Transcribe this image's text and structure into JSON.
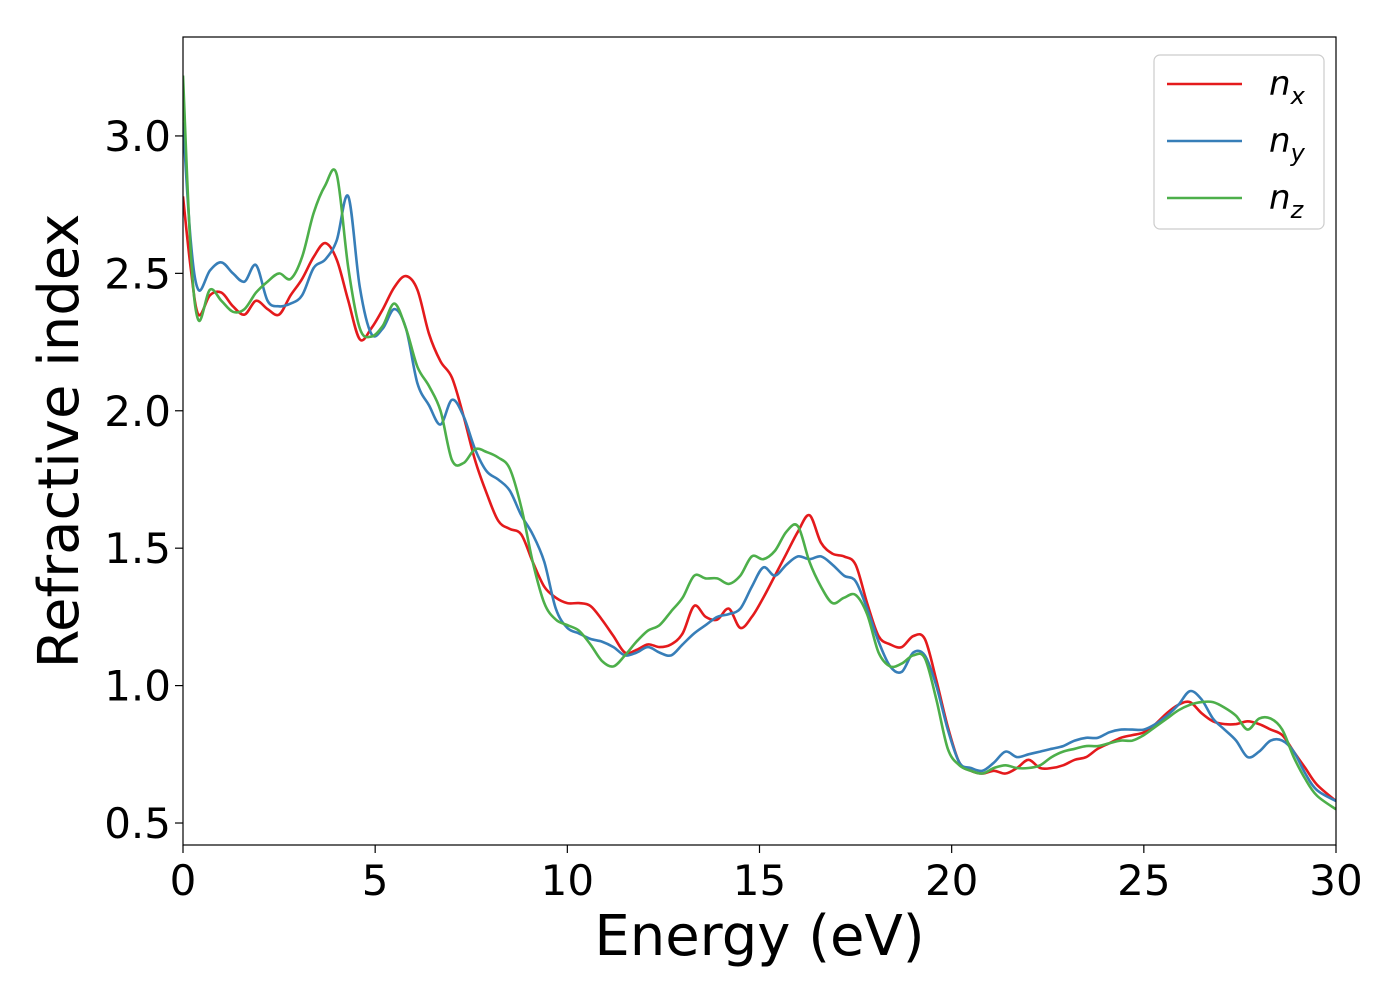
{
  "chart_data": {
    "type": "line",
    "xlabel": "Energy (eV)",
    "ylabel": "Refractive index",
    "xlim": [
      0,
      30
    ],
    "ylim": [
      0.42,
      3.36
    ],
    "xticks": [
      0,
      5,
      10,
      15,
      20,
      25,
      30
    ],
    "xtick_labels": [
      "0",
      "5",
      "10",
      "15",
      "20",
      "25",
      "30"
    ],
    "yticks": [
      0.5,
      1.0,
      1.5,
      2.0,
      2.5,
      3.0
    ],
    "ytick_labels": [
      "0.5",
      "1.0",
      "1.5",
      "2.0",
      "2.5",
      "3.0"
    ],
    "grid": false,
    "legend_position": "top-right",
    "x": [
      0,
      0.2,
      0.4,
      0.7,
      1.0,
      1.3,
      1.6,
      1.9,
      2.2,
      2.5,
      2.8,
      3.1,
      3.4,
      3.7,
      4.0,
      4.3,
      4.6,
      4.9,
      5.2,
      5.5,
      5.8,
      6.1,
      6.4,
      6.7,
      7.0,
      7.3,
      7.6,
      7.9,
      8.2,
      8.5,
      8.8,
      9.1,
      9.4,
      9.7,
      10.0,
      10.3,
      10.6,
      10.9,
      11.2,
      11.5,
      11.8,
      12.1,
      12.4,
      12.7,
      13.0,
      13.3,
      13.6,
      13.9,
      14.2,
      14.5,
      14.8,
      15.1,
      15.4,
      15.7,
      16.0,
      16.3,
      16.6,
      16.9,
      17.2,
      17.5,
      17.8,
      18.1,
      18.4,
      18.7,
      19.0,
      19.3,
      19.6,
      19.9,
      20.2,
      20.5,
      20.8,
      21.1,
      21.4,
      21.7,
      22.0,
      22.3,
      22.6,
      22.9,
      23.2,
      23.5,
      23.8,
      24.1,
      24.4,
      24.7,
      25.0,
      25.3,
      25.6,
      25.9,
      26.2,
      26.5,
      26.8,
      27.1,
      27.4,
      27.7,
      28.0,
      28.3,
      28.6,
      28.9,
      29.2,
      29.5,
      30.0
    ],
    "series": [
      {
        "name": "n",
        "subscript": "x",
        "color": "#e41a1c",
        "values": [
          2.78,
          2.52,
          2.35,
          2.42,
          2.43,
          2.38,
          2.35,
          2.4,
          2.37,
          2.35,
          2.42,
          2.48,
          2.56,
          2.61,
          2.55,
          2.4,
          2.26,
          2.3,
          2.37,
          2.45,
          2.49,
          2.44,
          2.28,
          2.18,
          2.12,
          1.98,
          1.82,
          1.7,
          1.6,
          1.57,
          1.55,
          1.45,
          1.36,
          1.32,
          1.3,
          1.3,
          1.29,
          1.24,
          1.18,
          1.12,
          1.13,
          1.15,
          1.14,
          1.15,
          1.19,
          1.29,
          1.25,
          1.24,
          1.28,
          1.21,
          1.25,
          1.32,
          1.4,
          1.48,
          1.56,
          1.62,
          1.52,
          1.48,
          1.47,
          1.44,
          1.3,
          1.18,
          1.15,
          1.14,
          1.18,
          1.17,
          1.02,
          0.85,
          0.72,
          0.69,
          0.68,
          0.69,
          0.68,
          0.7,
          0.73,
          0.7,
          0.7,
          0.71,
          0.73,
          0.74,
          0.77,
          0.79,
          0.81,
          0.82,
          0.83,
          0.86,
          0.9,
          0.93,
          0.94,
          0.9,
          0.87,
          0.86,
          0.86,
          0.87,
          0.86,
          0.84,
          0.82,
          0.76,
          0.7,
          0.64,
          0.58
        ]
      },
      {
        "name": "n",
        "subscript": "y",
        "color": "#377eb8",
        "values": [
          3.05,
          2.62,
          2.44,
          2.51,
          2.54,
          2.5,
          2.47,
          2.53,
          2.4,
          2.38,
          2.39,
          2.42,
          2.52,
          2.55,
          2.62,
          2.78,
          2.45,
          2.28,
          2.3,
          2.37,
          2.3,
          2.1,
          2.02,
          1.95,
          2.04,
          1.98,
          1.86,
          1.78,
          1.75,
          1.71,
          1.62,
          1.55,
          1.45,
          1.28,
          1.21,
          1.19,
          1.17,
          1.16,
          1.14,
          1.11,
          1.12,
          1.14,
          1.12,
          1.11,
          1.15,
          1.19,
          1.22,
          1.25,
          1.26,
          1.28,
          1.36,
          1.43,
          1.4,
          1.44,
          1.47,
          1.46,
          1.47,
          1.44,
          1.4,
          1.38,
          1.28,
          1.16,
          1.07,
          1.05,
          1.12,
          1.11,
          1.0,
          0.84,
          0.72,
          0.7,
          0.69,
          0.72,
          0.76,
          0.74,
          0.75,
          0.76,
          0.77,
          0.78,
          0.8,
          0.81,
          0.81,
          0.83,
          0.84,
          0.84,
          0.84,
          0.86,
          0.89,
          0.93,
          0.98,
          0.95,
          0.88,
          0.84,
          0.8,
          0.74,
          0.76,
          0.8,
          0.8,
          0.76,
          0.68,
          0.62,
          0.58
        ]
      },
      {
        "name": "n",
        "subscript": "z",
        "color": "#4daf4a",
        "values": [
          3.22,
          2.58,
          2.33,
          2.44,
          2.4,
          2.36,
          2.37,
          2.43,
          2.47,
          2.5,
          2.48,
          2.56,
          2.72,
          2.82,
          2.86,
          2.52,
          2.3,
          2.27,
          2.31,
          2.39,
          2.3,
          2.16,
          2.09,
          2.0,
          1.82,
          1.81,
          1.86,
          1.85,
          1.83,
          1.79,
          1.65,
          1.45,
          1.3,
          1.24,
          1.22,
          1.2,
          1.15,
          1.09,
          1.07,
          1.11,
          1.16,
          1.2,
          1.22,
          1.27,
          1.32,
          1.4,
          1.39,
          1.39,
          1.37,
          1.4,
          1.47,
          1.46,
          1.49,
          1.56,
          1.58,
          1.45,
          1.36,
          1.3,
          1.32,
          1.33,
          1.26,
          1.12,
          1.07,
          1.08,
          1.11,
          1.1,
          0.95,
          0.77,
          0.71,
          0.69,
          0.68,
          0.7,
          0.71,
          0.7,
          0.7,
          0.71,
          0.74,
          0.76,
          0.77,
          0.78,
          0.78,
          0.79,
          0.8,
          0.8,
          0.82,
          0.85,
          0.88,
          0.91,
          0.93,
          0.94,
          0.94,
          0.92,
          0.89,
          0.84,
          0.88,
          0.88,
          0.84,
          0.74,
          0.66,
          0.6,
          0.55
        ]
      }
    ]
  }
}
